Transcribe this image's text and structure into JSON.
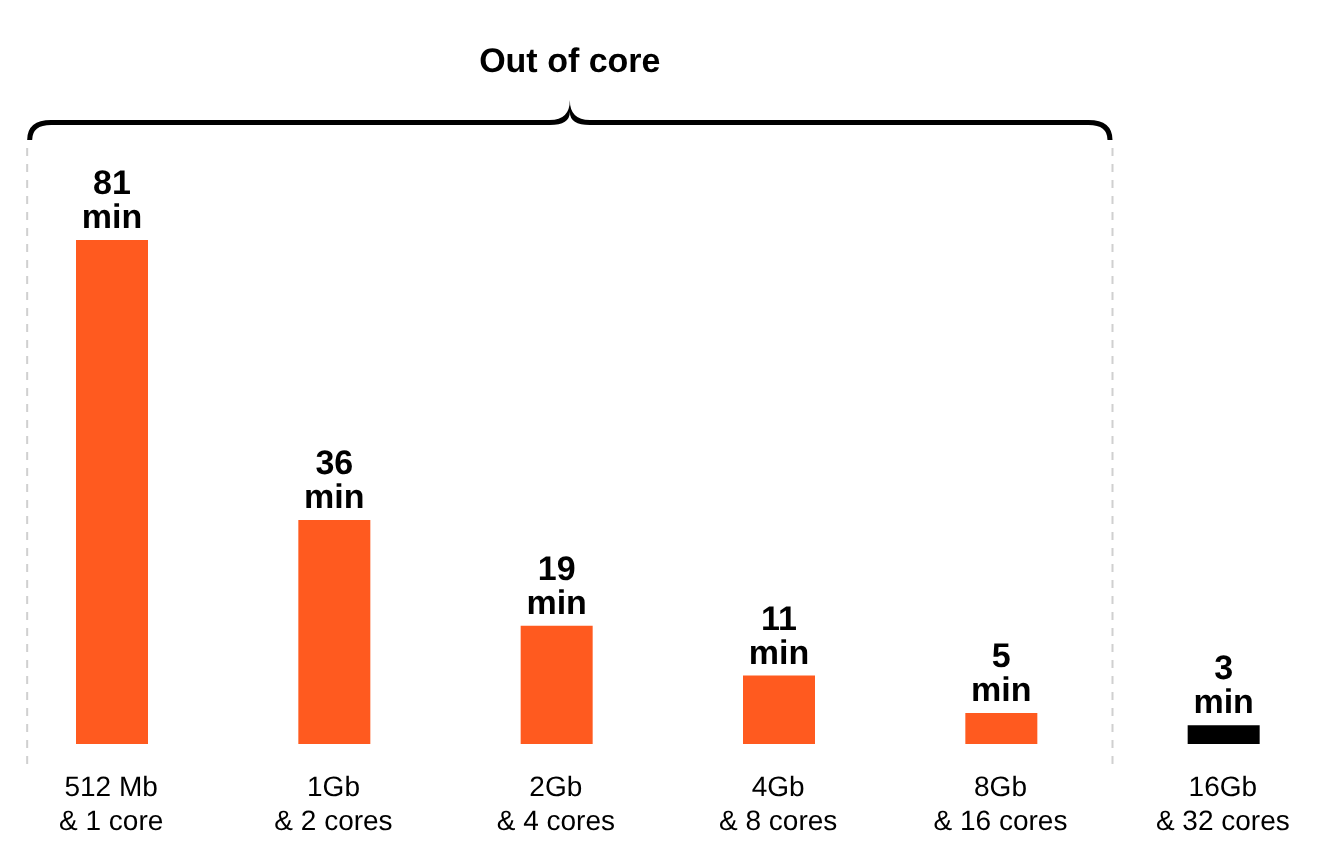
{
  "chart_data": {
    "type": "bar",
    "categories": [
      "512 Mb\n& 1 core",
      "1Gb\n& 2 cores",
      "2Gb\n& 4 cores",
      "4Gb\n& 8 cores",
      "8Gb\n& 16 cores",
      "16Gb\n& 32 cores"
    ],
    "values": [
      81,
      36,
      19,
      11,
      5,
      3
    ],
    "colors": [
      "#ff5a1f",
      "#ff5a1f",
      "#ff5a1f",
      "#ff5a1f",
      "#ff5a1f",
      "#000000"
    ],
    "value_labels": [
      "81 min",
      "36 min",
      "19 min",
      "11 min",
      "5 min",
      "3 min"
    ],
    "annotations": [
      "Out of core"
    ],
    "grid": false,
    "legend": false
  }
}
